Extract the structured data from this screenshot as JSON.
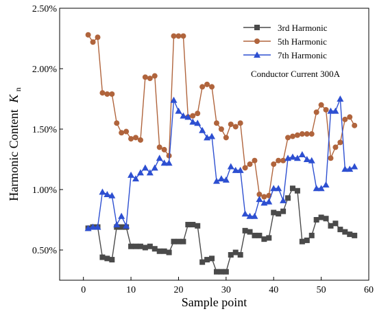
{
  "chart_data": {
    "type": "line",
    "xlabel": "Sample point",
    "ylabel": "Harmonic Content",
    "ylabel_symbol": "K",
    "ylabel_subscript": "n",
    "annotation": "Conductor  Current 300A",
    "xlim": [
      -5,
      60
    ],
    "ylim": [
      0.0025,
      0.025
    ],
    "x_ticks": [
      0,
      10,
      20,
      30,
      40,
      50,
      60
    ],
    "y_ticks": [
      0.005,
      0.01,
      0.015,
      0.02,
      0.025
    ],
    "y_tick_labels": [
      "0.50%",
      "1.00%",
      "1.50%",
      "2.00%",
      "2.50%"
    ],
    "legend_position": "top-right",
    "x": [
      1,
      2,
      3,
      4,
      5,
      6,
      7,
      8,
      9,
      10,
      11,
      12,
      13,
      14,
      15,
      16,
      17,
      18,
      19,
      20,
      21,
      22,
      23,
      24,
      25,
      26,
      27,
      28,
      29,
      30,
      31,
      32,
      33,
      34,
      35,
      36,
      37,
      38,
      39,
      40,
      41,
      42,
      43,
      44,
      45,
      46,
      47,
      48,
      49,
      50,
      51,
      52,
      53,
      54,
      55,
      56,
      57
    ],
    "series": [
      {
        "name": "3rd Harmonic",
        "color": "#4a4a4a",
        "marker": "square",
        "values": [
          0.0068,
          0.0069,
          0.0069,
          0.0044,
          0.0043,
          0.0042,
          0.0069,
          0.0069,
          0.0069,
          0.0053,
          0.0053,
          0.0053,
          0.0052,
          0.0053,
          0.0051,
          0.0049,
          0.0049,
          0.0048,
          0.0057,
          0.0057,
          0.0057,
          0.0071,
          0.0071,
          0.007,
          0.004,
          0.0042,
          0.0043,
          0.0032,
          0.0032,
          0.0032,
          0.0046,
          0.0048,
          0.0046,
          0.0066,
          0.0065,
          0.0062,
          0.0062,
          0.0059,
          0.006,
          0.0081,
          0.008,
          0.0082,
          0.0093,
          0.0101,
          0.0099,
          0.0057,
          0.0058,
          0.0062,
          0.0075,
          0.0077,
          0.0076,
          0.007,
          0.0072,
          0.0067,
          0.0065,
          0.0063,
          0.0062
        ]
      },
      {
        "name": "5th Harmonic",
        "color": "#b0643c",
        "marker": "circle",
        "values": [
          0.0228,
          0.0222,
          0.0226,
          0.018,
          0.0179,
          0.0179,
          0.0155,
          0.0147,
          0.0148,
          0.0142,
          0.0143,
          0.0141,
          0.0193,
          0.0192,
          0.0194,
          0.0135,
          0.0133,
          0.0128,
          0.0227,
          0.0227,
          0.0227,
          0.016,
          0.0161,
          0.0163,
          0.0185,
          0.0187,
          0.0185,
          0.0155,
          0.015,
          0.0143,
          0.0154,
          0.0152,
          0.0155,
          0.0118,
          0.0121,
          0.0124,
          0.0096,
          0.0094,
          0.0095,
          0.0121,
          0.0124,
          0.0124,
          0.0143,
          0.0144,
          0.0145,
          0.0146,
          0.0146,
          0.0146,
          0.0164,
          0.017,
          0.0166,
          0.0126,
          0.0135,
          0.0139,
          0.0158,
          0.016,
          0.0153
        ]
      },
      {
        "name": "7th Harmonic",
        "color": "#2d4fd1",
        "marker": "triangle",
        "values": [
          0.0068,
          0.0069,
          0.0069,
          0.0098,
          0.0096,
          0.0095,
          0.0071,
          0.0078,
          0.007,
          0.0112,
          0.0109,
          0.0114,
          0.0118,
          0.0114,
          0.0118,
          0.0126,
          0.0122,
          0.0122,
          0.0174,
          0.0165,
          0.0161,
          0.016,
          0.0156,
          0.0155,
          0.0149,
          0.0143,
          0.0144,
          0.0107,
          0.0109,
          0.0108,
          0.0119,
          0.0116,
          0.0116,
          0.008,
          0.0078,
          0.0078,
          0.0092,
          0.0089,
          0.009,
          0.0101,
          0.0101,
          0.0091,
          0.0126,
          0.0127,
          0.0126,
          0.0129,
          0.0125,
          0.0124,
          0.0101,
          0.0101,
          0.0104,
          0.0165,
          0.0165,
          0.0175,
          0.0117,
          0.0117,
          0.0119
        ]
      }
    ]
  }
}
